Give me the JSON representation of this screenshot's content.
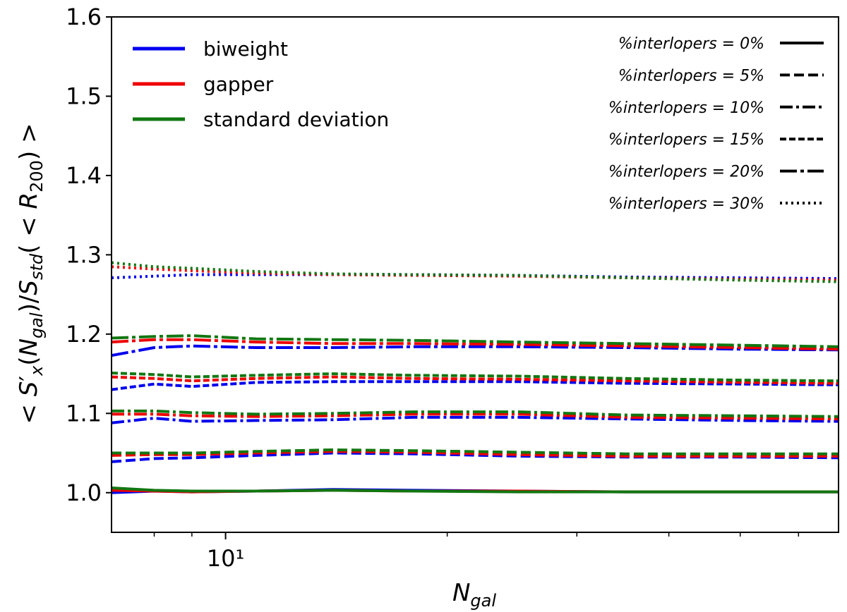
{
  "chart_data": {
    "type": "line",
    "xscale": "log",
    "xlim": [
      7,
      68
    ],
    "ylim": [
      0.95,
      1.6
    ],
    "xlabel": "N_gal",
    "ylabel": "< S'x(Ngal)/Sstd(< R200) >",
    "xticks": [
      {
        "value": 10,
        "label": "10¹"
      }
    ],
    "xminor_ticks": [
      8,
      9,
      20,
      30,
      40,
      50,
      60
    ],
    "yticks": [
      1.0,
      1.1,
      1.2,
      1.3,
      1.4,
      1.5,
      1.6
    ],
    "ytick_labels": [
      "1.0",
      "1.1",
      "1.2",
      "1.3",
      "1.4",
      "1.5",
      "1.6"
    ],
    "grid": false,
    "legend_methods": {
      "placement": "top-left",
      "entries": [
        {
          "label": "biweight",
          "color": "#0000ee"
        },
        {
          "label": "gapper",
          "color": "#ee0000"
        },
        {
          "label": "standard deviation",
          "color": "#117711"
        }
      ]
    },
    "legend_interlopers": {
      "placement": "top-right",
      "entries": [
        {
          "label": "%interlopers = 0%",
          "style": "solid"
        },
        {
          "label": "%interlopers = 5%",
          "style": "dashed"
        },
        {
          "label": "%interlopers = 10%",
          "style": "dashdot"
        },
        {
          "label": "%interlopers = 15%",
          "style": "densedash"
        },
        {
          "label": "%interlopers = 20%",
          "style": "longdashdot"
        },
        {
          "label": "%interlopers = 30%",
          "style": "dotted"
        }
      ]
    },
    "x": [
      7,
      8,
      9,
      11,
      14,
      18,
      25,
      35,
      50,
      68
    ],
    "series": [
      {
        "method": "biweight",
        "interlopers": "0%",
        "style": "solid",
        "color": "#0000ee",
        "values": [
          1.0,
          1.002,
          1.001,
          1.002,
          1.004,
          1.003,
          1.002,
          1.001,
          1.001,
          1.001
        ]
      },
      {
        "method": "gapper",
        "interlopers": "0%",
        "style": "solid",
        "color": "#ee0000",
        "values": [
          1.003,
          1.002,
          1.001,
          1.002,
          1.003,
          1.002,
          1.002,
          1.001,
          1.001,
          1.001
        ]
      },
      {
        "method": "standard deviation",
        "interlopers": "0%",
        "style": "solid",
        "color": "#117711",
        "values": [
          1.006,
          1.003,
          1.002,
          1.002,
          1.003,
          1.002,
          1.001,
          1.001,
          1.001,
          1.001
        ]
      },
      {
        "method": "biweight",
        "interlopers": "5%",
        "style": "dashed",
        "color": "#0000ee",
        "values": [
          1.039,
          1.043,
          1.044,
          1.047,
          1.05,
          1.049,
          1.046,
          1.045,
          1.045,
          1.044
        ]
      },
      {
        "method": "gapper",
        "interlopers": "5%",
        "style": "dashed",
        "color": "#ee0000",
        "values": [
          1.047,
          1.048,
          1.048,
          1.05,
          1.052,
          1.051,
          1.048,
          1.046,
          1.046,
          1.046
        ]
      },
      {
        "method": "standard deviation",
        "interlopers": "5%",
        "style": "dashed",
        "color": "#117711",
        "values": [
          1.05,
          1.05,
          1.05,
          1.052,
          1.054,
          1.053,
          1.051,
          1.049,
          1.049,
          1.049
        ]
      },
      {
        "method": "biweight",
        "interlopers": "10%",
        "style": "dashdot",
        "color": "#0000ee",
        "values": [
          1.088,
          1.094,
          1.09,
          1.091,
          1.092,
          1.095,
          1.095,
          1.093,
          1.091,
          1.09
        ]
      },
      {
        "method": "gapper",
        "interlopers": "10%",
        "style": "dashdot",
        "color": "#ee0000",
        "values": [
          1.099,
          1.099,
          1.097,
          1.096,
          1.097,
          1.099,
          1.099,
          1.095,
          1.094,
          1.093
        ]
      },
      {
        "method": "standard deviation",
        "interlopers": "10%",
        "style": "dashdot",
        "color": "#117711",
        "values": [
          1.103,
          1.103,
          1.101,
          1.099,
          1.1,
          1.102,
          1.102,
          1.098,
          1.097,
          1.096
        ]
      },
      {
        "method": "biweight",
        "interlopers": "15%",
        "style": "densedash",
        "color": "#0000ee",
        "values": [
          1.13,
          1.137,
          1.134,
          1.139,
          1.14,
          1.14,
          1.14,
          1.138,
          1.137,
          1.136
        ]
      },
      {
        "method": "gapper",
        "interlopers": "15%",
        "style": "densedash",
        "color": "#ee0000",
        "values": [
          1.146,
          1.144,
          1.141,
          1.144,
          1.146,
          1.144,
          1.143,
          1.141,
          1.139,
          1.138
        ]
      },
      {
        "method": "standard deviation",
        "interlopers": "15%",
        "style": "densedash",
        "color": "#117711",
        "values": [
          1.151,
          1.149,
          1.146,
          1.148,
          1.15,
          1.148,
          1.147,
          1.144,
          1.142,
          1.141
        ]
      },
      {
        "method": "biweight",
        "interlopers": "20%",
        "style": "longdashdot",
        "color": "#0000ee",
        "values": [
          1.173,
          1.183,
          1.185,
          1.183,
          1.183,
          1.184,
          1.184,
          1.183,
          1.181,
          1.18
        ]
      },
      {
        "method": "gapper",
        "interlopers": "20%",
        "style": "longdashdot",
        "color": "#ee0000",
        "values": [
          1.19,
          1.193,
          1.193,
          1.19,
          1.188,
          1.188,
          1.187,
          1.185,
          1.183,
          1.181
        ]
      },
      {
        "method": "standard deviation",
        "interlopers": "20%",
        "style": "longdashdot",
        "color": "#117711",
        "values": [
          1.195,
          1.197,
          1.198,
          1.194,
          1.193,
          1.192,
          1.19,
          1.188,
          1.186,
          1.184
        ]
      },
      {
        "method": "biweight",
        "interlopers": "30%",
        "style": "dotted",
        "color": "#0000ee",
        "values": [
          1.271,
          1.273,
          1.275,
          1.275,
          1.275,
          1.275,
          1.274,
          1.272,
          1.271,
          1.27
        ]
      },
      {
        "method": "gapper",
        "interlopers": "30%",
        "style": "dotted",
        "color": "#ee0000",
        "values": [
          1.285,
          1.282,
          1.28,
          1.277,
          1.275,
          1.274,
          1.273,
          1.271,
          1.269,
          1.268
        ]
      },
      {
        "method": "standard deviation",
        "interlopers": "30%",
        "style": "dotted",
        "color": "#117711",
        "values": [
          1.29,
          1.285,
          1.283,
          1.279,
          1.276,
          1.275,
          1.274,
          1.271,
          1.268,
          1.266
        ]
      }
    ]
  }
}
